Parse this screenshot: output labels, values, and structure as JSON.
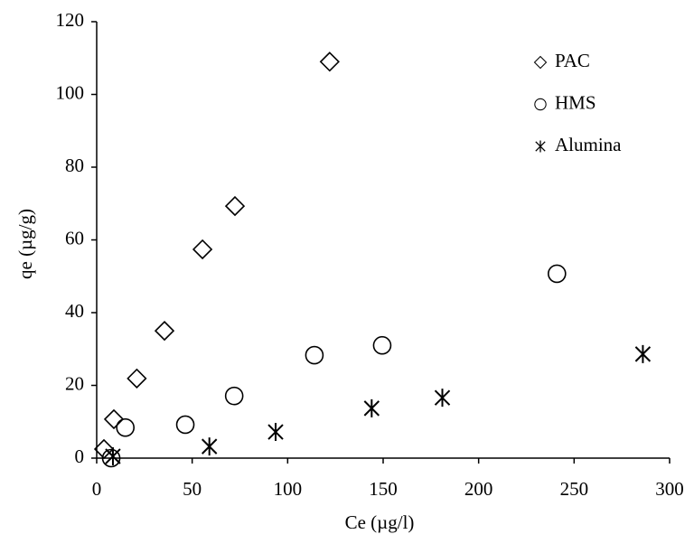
{
  "chart_data": {
    "type": "scatter",
    "x_label": "Ce (µg/l)",
    "y_label": "qe (µg/g)",
    "xlim": [
      0,
      300
    ],
    "xticks": [
      0,
      50,
      100,
      150,
      200,
      250,
      300
    ],
    "ylim": [
      0,
      120
    ],
    "yticks": [
      0,
      20,
      40,
      60,
      80,
      100,
      120
    ],
    "grid": false,
    "legend": "upper right",
    "series": [
      {
        "name": "PAC",
        "color": "#000000",
        "marker": "diamond",
        "x": [
          3.8,
          9,
          21,
          35.5,
          55.4,
          72.4,
          122
        ],
        "values": [
          2.5,
          10.7,
          21.9,
          35,
          57.4,
          69.3,
          109
        ]
      },
      {
        "name": "HMS",
        "color": "#000000",
        "marker": "circle",
        "x": [
          7.6,
          15,
          46.4,
          72,
          114,
          149.5,
          241
        ],
        "values": [
          0,
          8.4,
          9.2,
          17.1,
          28.3,
          31,
          50.7
        ]
      },
      {
        "name": "Alumina",
        "color": "#000000",
        "marker": "star",
        "x": [
          8.5,
          59,
          93.7,
          144,
          181,
          286
        ],
        "values": [
          0.5,
          3.2,
          7.2,
          13.7,
          16.6,
          28.6
        ]
      }
    ]
  }
}
